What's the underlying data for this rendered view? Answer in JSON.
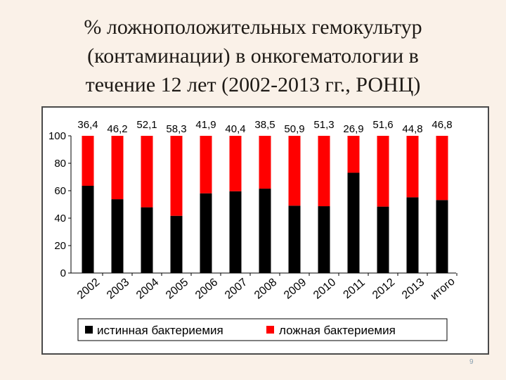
{
  "slide": {
    "title_line1": "% ложноположительных гемокультур",
    "title_line2": "(контаминации) в онкогематологии в",
    "title_line3": "течение 12 лет (2002-2013 гг., РОНЦ)",
    "page_number": "9"
  },
  "colors": {
    "true_bacteremia": "#000000",
    "false_bacteremia": "#ff0000",
    "background": "#faf1e8"
  },
  "chart_data": {
    "type": "bar",
    "stacked": true,
    "categories": [
      "2002",
      "2003",
      "2004",
      "2005",
      "2006",
      "2007",
      "2008",
      "2009",
      "2010",
      "2011",
      "2012",
      "2013",
      "итого"
    ],
    "series": [
      {
        "name": "истинная бактериемия",
        "values": [
          63.6,
          53.8,
          47.9,
          41.7,
          58.1,
          59.6,
          61.5,
          49.1,
          48.7,
          73.1,
          48.4,
          55.2,
          53.2
        ]
      },
      {
        "name": "ложная бактериемия",
        "values": [
          36.4,
          46.2,
          52.1,
          58.3,
          41.9,
          40.4,
          38.5,
          50.9,
          51.3,
          26.9,
          51.6,
          44.8,
          46.8
        ]
      }
    ],
    "data_labels": [
      "36,4",
      "46,2",
      "52,1",
      "58,3",
      "41,9",
      "40,4",
      "38,5",
      "50,9",
      "51,3",
      "26,9",
      "51,6",
      "44,8",
      "46,8"
    ],
    "y_ticks": [
      "0",
      "20",
      "40",
      "60",
      "80",
      "100"
    ],
    "ylim": [
      0,
      100
    ],
    "grid": false,
    "legend_position": "bottom",
    "legend": [
      "истинная бактериемия",
      "ложная бактериемия"
    ]
  }
}
